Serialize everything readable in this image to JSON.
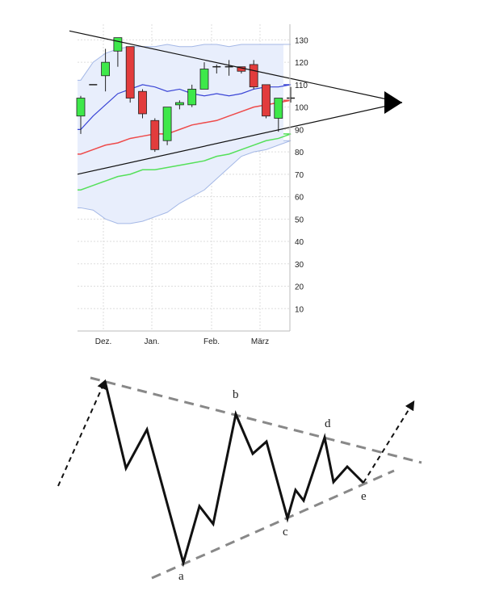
{
  "chart_data": [
    {
      "type": "candlestick",
      "title": "",
      "xlabel": "",
      "ylabel": "",
      "ylim": [
        0,
        137
      ],
      "yticks": [
        10,
        20,
        30,
        40,
        50,
        60,
        70,
        80,
        90,
        100,
        110,
        120,
        130
      ],
      "xtick_labels": [
        "Dez.",
        "Jan.",
        "Feb.",
        "März"
      ],
      "grid": true,
      "y_axis_position": "right",
      "candles": [
        {
          "open": 96,
          "high": 105,
          "low": 88,
          "close": 104
        },
        {
          "open": 110,
          "high": 110,
          "low": 110,
          "close": 110
        },
        {
          "open": 114,
          "high": 126,
          "low": 107,
          "close": 120
        },
        {
          "open": 125,
          "high": 131,
          "low": 118,
          "close": 131
        },
        {
          "open": 127,
          "high": 127,
          "low": 102,
          "close": 104
        },
        {
          "open": 107,
          "high": 108,
          "low": 95,
          "close": 97
        },
        {
          "open": 94,
          "high": 95,
          "low": 80,
          "close": 81
        },
        {
          "open": 85,
          "high": 100,
          "low": 83,
          "close": 100
        },
        {
          "open": 101,
          "high": 103,
          "low": 99,
          "close": 102
        },
        {
          "open": 101,
          "high": 110,
          "low": 100,
          "close": 108
        },
        {
          "open": 108,
          "high": 120,
          "low": 108,
          "close": 117
        },
        {
          "open": 118,
          "high": 119,
          "low": 115,
          "close": 118
        },
        {
          "open": 118,
          "high": 121,
          "low": 114,
          "close": 118
        },
        {
          "open": 118,
          "high": 118,
          "low": 115,
          "close": 116
        },
        {
          "open": 119,
          "high": 121,
          "low": 108,
          "close": 109
        },
        {
          "open": 110,
          "high": 110,
          "low": 95,
          "close": 96
        },
        {
          "open": 95,
          "high": 104,
          "low": 89,
          "close": 104
        },
        {
          "open": 104,
          "high": 109,
          "low": 102,
          "close": 104
        }
      ],
      "colors": {
        "up": "#3ee84a",
        "down": "#e23c3c",
        "wick": "#222222",
        "band_fill": "#e8eefc",
        "band_line": "#a4b8e6",
        "middle_line": "#3a45d6",
        "ma_red": "#ee4a4a",
        "ma_green": "#55e05a",
        "trend_line": "#111111",
        "grid": "#dddddd"
      },
      "bollinger_middle": [
        90,
        96,
        101,
        106,
        108,
        110,
        109,
        107,
        108,
        106,
        105,
        106,
        105,
        106,
        108,
        109,
        109,
        110
      ],
      "bollinger_upper": [
        112,
        120,
        124,
        126,
        127,
        127,
        127,
        128,
        127,
        127,
        128,
        128,
        127,
        128,
        128,
        128,
        128,
        128
      ],
      "bollinger_lower": [
        55,
        54,
        50,
        48,
        48,
        49,
        51,
        53,
        57,
        60,
        63,
        68,
        73,
        78,
        80,
        81,
        83,
        85
      ],
      "ma_red": [
        79,
        81,
        83,
        84,
        86,
        87,
        88,
        88,
        90,
        92,
        93,
        94,
        96,
        98,
        100,
        101,
        102,
        103
      ],
      "ma_green": [
        63,
        65,
        67,
        69,
        70,
        72,
        72,
        73,
        74,
        75,
        76,
        78,
        79,
        81,
        83,
        85,
        86,
        88
      ],
      "trend_upper": {
        "from": 134,
        "to": 112
      },
      "trend_lower": {
        "from": 70,
        "to": 93
      }
    },
    {
      "type": "diagram",
      "points": [
        "a",
        "b",
        "c",
        "d",
        "e"
      ],
      "colors": {
        "line": "#111111",
        "dashed": "#888888"
      }
    }
  ]
}
